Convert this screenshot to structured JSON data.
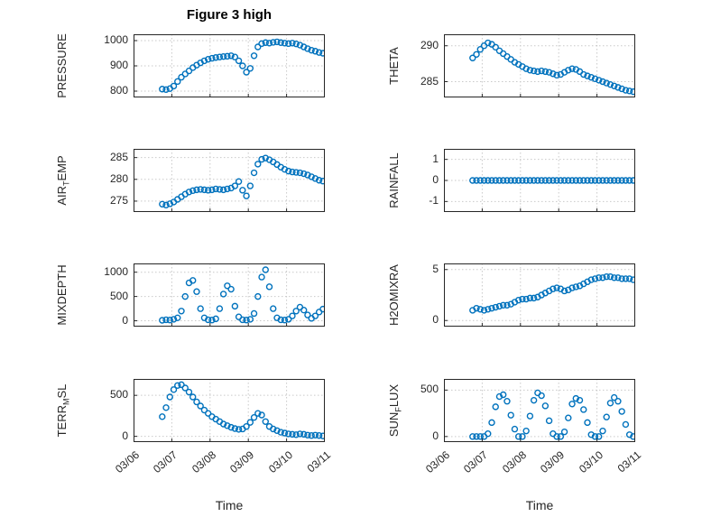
{
  "title": "Figure 3 high",
  "xlabel": "Time",
  "accent_color": "#0072BD",
  "axis_color": "#262626",
  "grid_color": "#c9c9c9",
  "chart_data": {
    "type": "scatter",
    "marker": "open-circle",
    "grid": true,
    "layout": "4 rows x 2 columns",
    "x_tick_labels": [
      "03/06",
      "03/07",
      "03/08",
      "03/09",
      "03/10",
      "03/11"
    ],
    "x_range_days": [
      0,
      5
    ],
    "x_units": "days since 03/06",
    "x": [
      0.75,
      0.85,
      0.95,
      1.05,
      1.15,
      1.25,
      1.35,
      1.45,
      1.55,
      1.65,
      1.75,
      1.85,
      1.95,
      2.05,
      2.15,
      2.25,
      2.35,
      2.45,
      2.55,
      2.65,
      2.75,
      2.85,
      2.95,
      3.05,
      3.15,
      3.25,
      3.35,
      3.45,
      3.55,
      3.65,
      3.75,
      3.85,
      3.95,
      4.05,
      4.15,
      4.25,
      4.35,
      4.45,
      4.55,
      4.65,
      4.75,
      4.85,
      4.95
    ],
    "charts": [
      {
        "name": "PRESSURE",
        "ylabel_pre": "PRESSURE",
        "ylabel_sub": "",
        "ylabel_post": "",
        "ylim": [
          775,
          1025
        ],
        "yticks": [
          800,
          900,
          1000
        ],
        "ytick_labels": [
          "800",
          "900",
          "1000"
        ],
        "values": [
          808,
          806,
          810,
          820,
          838,
          855,
          868,
          880,
          893,
          903,
          912,
          920,
          926,
          930,
          933,
          935,
          937,
          938,
          940,
          935,
          920,
          900,
          875,
          890,
          940,
          975,
          988,
          992,
          990,
          993,
          995,
          992,
          990,
          988,
          990,
          987,
          982,
          975,
          968,
          962,
          958,
          953,
          950
        ]
      },
      {
        "name": "THETA",
        "ylabel_pre": "THETA",
        "ylabel_sub": "",
        "ylabel_post": "",
        "ylim": [
          282.8,
          291.6
        ],
        "yticks": [
          285,
          290
        ],
        "ytick_labels": [
          "285",
          "290"
        ],
        "values": [
          288.3,
          288.8,
          289.5,
          290.0,
          290.4,
          290.2,
          289.8,
          289.3,
          288.9,
          288.5,
          288.1,
          287.7,
          287.4,
          287.1,
          286.8,
          286.6,
          286.5,
          286.4,
          286.5,
          286.4,
          286.3,
          286.1,
          285.9,
          286.0,
          286.3,
          286.6,
          286.8,
          286.7,
          286.4,
          286.0,
          285.8,
          285.6,
          285.4,
          285.2,
          285.0,
          284.8,
          284.6,
          284.4,
          284.2,
          284.0,
          283.8,
          283.7,
          283.6
        ]
      },
      {
        "name": "AIR_TEMP",
        "ylabel_pre": "AIR",
        "ylabel_sub": "T",
        "ylabel_post": "EMP",
        "ylim": [
          272.5,
          287
        ],
        "yticks": [
          275,
          280,
          285
        ],
        "ytick_labels": [
          "275",
          "280",
          "285"
        ],
        "values": [
          274.3,
          274.1,
          274.4,
          274.8,
          275.4,
          276.0,
          276.6,
          277.1,
          277.4,
          277.6,
          277.7,
          277.6,
          277.5,
          277.6,
          277.8,
          277.7,
          277.6,
          277.8,
          278.0,
          278.5,
          279.5,
          277.5,
          276.2,
          278.5,
          281.5,
          283.5,
          284.6,
          284.9,
          284.5,
          284.0,
          283.4,
          282.8,
          282.3,
          281.9,
          281.7,
          281.6,
          281.5,
          281.3,
          281.0,
          280.6,
          280.2,
          279.8,
          279.6
        ]
      },
      {
        "name": "RAINFALL",
        "ylabel_pre": "RAINFALL",
        "ylabel_sub": "",
        "ylabel_post": "",
        "ylim": [
          -1.5,
          1.5
        ],
        "yticks": [
          -1,
          0,
          1
        ],
        "ytick_labels": [
          "-1",
          "0",
          "1"
        ],
        "values": [
          0,
          0,
          0,
          0,
          0,
          0,
          0,
          0,
          0,
          0,
          0,
          0,
          0,
          0,
          0,
          0,
          0,
          0,
          0,
          0,
          0,
          0,
          0,
          0,
          0,
          0,
          0,
          0,
          0,
          0,
          0,
          0,
          0,
          0,
          0,
          0,
          0,
          0,
          0,
          0,
          0,
          0,
          0
        ]
      },
      {
        "name": "MIXDEPTH",
        "ylabel_pre": "MIXDEPTH",
        "ylabel_sub": "",
        "ylabel_post": "",
        "ylim": [
          -120,
          1180
        ],
        "yticks": [
          0,
          500,
          1000
        ],
        "ytick_labels": [
          "0",
          "500",
          "1000"
        ],
        "values": [
          10,
          20,
          15,
          30,
          60,
          200,
          500,
          780,
          830,
          600,
          250,
          60,
          20,
          15,
          40,
          250,
          550,
          720,
          650,
          300,
          80,
          20,
          15,
          30,
          150,
          500,
          900,
          1050,
          700,
          250,
          60,
          20,
          15,
          30,
          100,
          200,
          280,
          220,
          120,
          50,
          100,
          180,
          240
        ]
      },
      {
        "name": "H2OMIXRA",
        "ylabel_pre": "H2OMIXRA",
        "ylabel_sub": "",
        "ylabel_post": "",
        "ylim": [
          -0.6,
          5.6
        ],
        "yticks": [
          0,
          5
        ],
        "ytick_labels": [
          "0",
          "5"
        ],
        "values": [
          1.0,
          1.2,
          1.1,
          1.0,
          1.1,
          1.2,
          1.3,
          1.4,
          1.5,
          1.5,
          1.6,
          1.8,
          2.0,
          2.1,
          2.1,
          2.2,
          2.2,
          2.3,
          2.5,
          2.7,
          2.9,
          3.1,
          3.2,
          3.1,
          2.9,
          3.0,
          3.2,
          3.3,
          3.4,
          3.6,
          3.8,
          4.0,
          4.1,
          4.2,
          4.2,
          4.3,
          4.3,
          4.2,
          4.2,
          4.1,
          4.1,
          4.1,
          4.0
        ]
      },
      {
        "name": "TERR_MSL",
        "ylabel_pre": "TERR",
        "ylabel_sub": "M",
        "ylabel_post": "SL",
        "ylim": [
          -70,
          700
        ],
        "yticks": [
          0,
          500
        ],
        "ytick_labels": [
          "0",
          "500"
        ],
        "values": [
          240,
          350,
          480,
          570,
          620,
          630,
          590,
          540,
          480,
          420,
          370,
          320,
          280,
          240,
          210,
          180,
          150,
          130,
          110,
          95,
          85,
          90,
          120,
          170,
          230,
          280,
          260,
          180,
          120,
          90,
          70,
          50,
          40,
          30,
          25,
          20,
          30,
          25,
          15,
          10,
          15,
          10,
          5
        ]
      },
      {
        "name": "SUN_FLUX",
        "ylabel_pre": "SUN",
        "ylabel_sub": "F",
        "ylabel_post": "LUX",
        "ylim": [
          -60,
          620
        ],
        "yticks": [
          0,
          500
        ],
        "ytick_labels": [
          "0",
          "500"
        ],
        "values": [
          0,
          0,
          0,
          0,
          30,
          150,
          320,
          430,
          450,
          380,
          230,
          80,
          0,
          0,
          60,
          220,
          390,
          470,
          440,
          330,
          170,
          30,
          0,
          0,
          50,
          200,
          350,
          410,
          390,
          290,
          150,
          20,
          0,
          0,
          60,
          210,
          360,
          420,
          380,
          270,
          130,
          20,
          0
        ]
      }
    ]
  }
}
